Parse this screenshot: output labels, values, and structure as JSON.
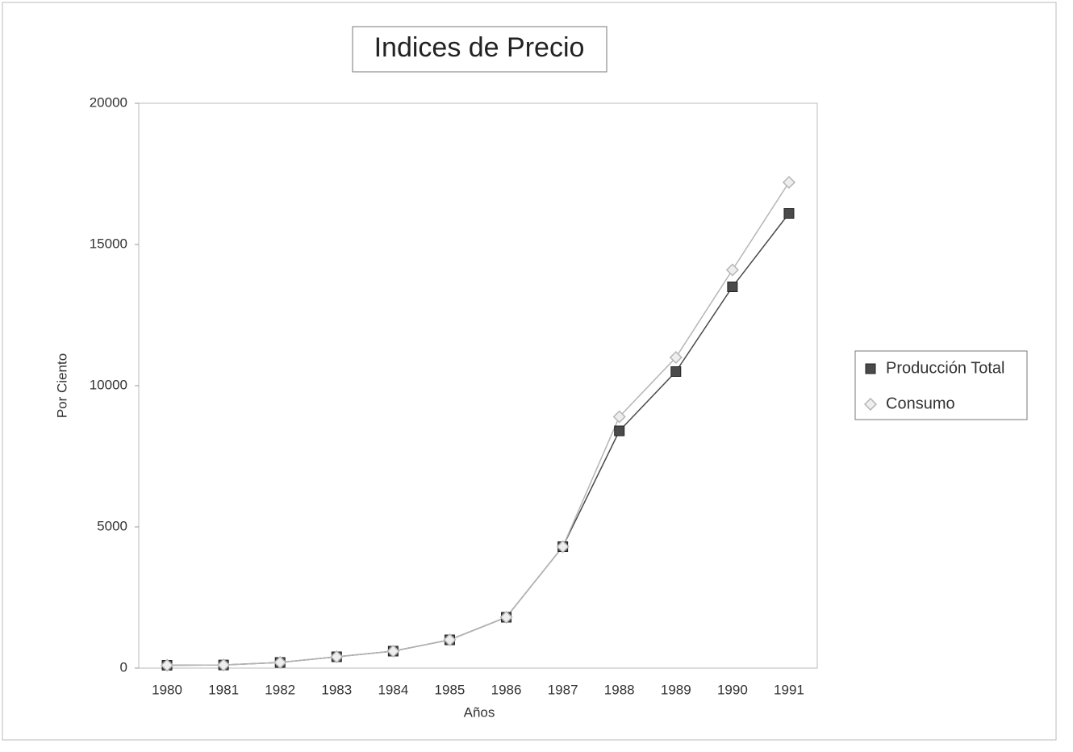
{
  "chart_data": {
    "type": "line",
    "title": "Indices de Precio",
    "x_label": "Años",
    "y_label": "Por Ciento",
    "categories": [
      "1980",
      "1981",
      "1982",
      "1983",
      "1984",
      "1985",
      "1986",
      "1987",
      "1988",
      "1989",
      "1990",
      "1991"
    ],
    "series": [
      {
        "name": "Producción Total",
        "color": "#4a4a4a",
        "marker": "square",
        "values": [
          100,
          110,
          200,
          400,
          600,
          1000,
          1800,
          4300,
          8400,
          10500,
          13500,
          16100
        ]
      },
      {
        "name": "Consumo",
        "color": "#b5b5b5",
        "marker": "diamond",
        "values": [
          100,
          110,
          200,
          400,
          600,
          1000,
          1800,
          4300,
          8900,
          11000,
          14100,
          17200
        ]
      }
    ],
    "ylim": [
      0,
      20000
    ],
    "yticks": [
      0,
      5000,
      10000,
      15000,
      20000
    ],
    "grid": false,
    "legend": "right"
  }
}
